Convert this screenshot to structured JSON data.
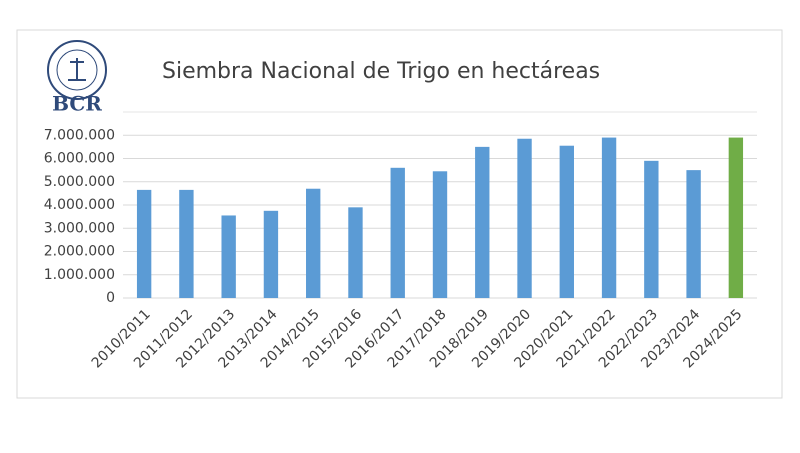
{
  "logo": {
    "text": "BCR"
  },
  "chart_data": {
    "type": "bar",
    "title": "Siembra Nacional de Trigo  en hectáreas",
    "categories": [
      "2010/2011",
      "2011/2012",
      "2012/2013",
      "2013/2014",
      "2014/2015",
      "2015/2016",
      "2016/2017",
      "2017/2018",
      "2018/2019",
      "2019/2020",
      "2020/2021",
      "2021/2022",
      "2022/2023",
      "2023/2024",
      "2024/2025"
    ],
    "values": [
      4650000,
      4650000,
      3550000,
      3750000,
      4700000,
      3900000,
      5600000,
      5450000,
      6500000,
      6850000,
      6550000,
      6900000,
      5900000,
      5500000,
      6900000
    ],
    "colors": [
      "#5b9bd5",
      "#5b9bd5",
      "#5b9bd5",
      "#5b9bd5",
      "#5b9bd5",
      "#5b9bd5",
      "#5b9bd5",
      "#5b9bd5",
      "#5b9bd5",
      "#5b9bd5",
      "#5b9bd5",
      "#5b9bd5",
      "#5b9bd5",
      "#5b9bd5",
      "#70ad47"
    ],
    "ylim": [
      0,
      8000000
    ],
    "yticks": [
      0,
      {
        "value": 1000000,
        "label": "1.000.000"
      },
      {
        "value": 2000000,
        "label": "2.000.000"
      },
      {
        "value": 3000000,
        "label": "3.000.000"
      },
      {
        "value": 4000000,
        "label": "4.000.000"
      },
      {
        "value": 5000000,
        "label": "5.000.000"
      },
      {
        "value": 6000000,
        "label": "6.000.000"
      },
      {
        "value": 7000000,
        "label": "7.000.000"
      }
    ],
    "grid": true
  }
}
